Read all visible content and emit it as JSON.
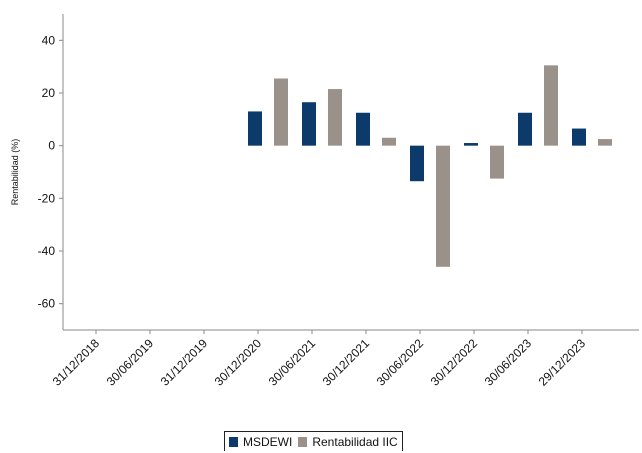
{
  "chart_data": {
    "type": "bar",
    "ylabel": "Rentabilidad (%)",
    "xlabel": "",
    "ylim": [
      -70,
      50
    ],
    "yticks": [
      40,
      20,
      0,
      -20,
      -40,
      -60
    ],
    "grid": false,
    "legend_position": "bottom-center",
    "categories": [
      "31/12/2018",
      "30/06/2019",
      "31/12/2019",
      "30/12/2020",
      "30/06/2021",
      "30/12/2021",
      "30/06/2022",
      "30/12/2022",
      "30/06/2023",
      "29/12/2023"
    ],
    "series": [
      {
        "name": "MSDEWI",
        "color": "#0b3a6b",
        "values": [
          null,
          null,
          null,
          13,
          16.5,
          12.5,
          -13.5,
          1,
          12.5,
          6.5
        ]
      },
      {
        "name": "Rentabilidad IIC",
        "color": "#9a918b",
        "values": [
          null,
          null,
          null,
          25.5,
          21.5,
          3,
          -46,
          -12.5,
          30.5,
          2.5
        ]
      }
    ]
  }
}
